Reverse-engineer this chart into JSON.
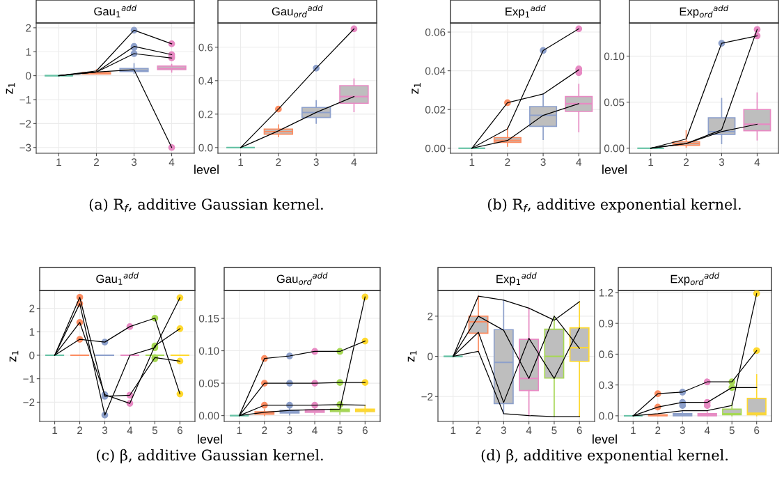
{
  "chart_data": [
    {
      "type": "box",
      "title": "Gau$_{1}$$^{add}$",
      "ylabel": "z$_{1}$",
      "xlabel": "level",
      "annotations": [
        "(a) R$_{f}$, additive Gaussian kernel."
      ],
      "categories": [
        "1",
        "2",
        "3",
        "4"
      ],
      "colors": [
        "#66c2a5",
        "#fc8d62",
        "#8da0cb",
        "#e78ac3"
      ],
      "ylim": [
        -3.24,
        2.2
      ],
      "yticks": [
        {
          "value": -3,
          "label": "−3"
        },
        {
          "value": -2,
          "label": "−2"
        },
        {
          "value": -1,
          "label": "−1"
        },
        0,
        1,
        2
      ],
      "grid": true,
      "boxes": [
        {
          "low": 0,
          "q1": 0,
          "median": 0,
          "q3": 0,
          "high": 0
        },
        {
          "low": 0.07,
          "q1": 0.07,
          "median": 0.1,
          "q3": 0.13,
          "high": 0.25
        },
        {
          "low": 0.1,
          "q1": 0.17,
          "median": 0.22,
          "q3": 0.3,
          "high": 0.5,
          "outliers": [
            1.9,
            1.22,
            1.17,
            0.92
          ]
        },
        {
          "low": 0.15,
          "q1": 0.25,
          "median": 0.3,
          "q3": 0.4,
          "high": 0.47,
          "outliers": [
            1.33,
            0.88,
            0.8,
            0.74,
            -3.0
          ]
        }
      ],
      "series": [
        {
          "type": "line",
          "color": "#000000",
          "values": [
            0,
            0.2,
            1.9,
            1.33
          ]
        },
        {
          "type": "line",
          "color": "#000000",
          "values": [
            0,
            0.15,
            0.25,
            -3.0
          ]
        },
        {
          "type": "line",
          "color": "#000000",
          "values": [
            0,
            0.15,
            1.22,
            0.88
          ]
        },
        {
          "type": "line",
          "color": "#000000",
          "values": [
            0,
            0.15,
            0.92,
            0.74
          ]
        }
      ]
    },
    {
      "type": "box",
      "title": "Gau$_{ord}$$^{add}$",
      "categories": [
        "1",
        "2",
        "3",
        "4"
      ],
      "colors": [
        "#66c2a5",
        "#fc8d62",
        "#8da0cb",
        "#e78ac3"
      ],
      "ylim": [
        -0.034,
        0.745
      ],
      "yticks": [
        {
          "value": 0,
          "label": "0.0"
        },
        0.2,
        0.4,
        0.6
      ],
      "grid": true,
      "boxes": [
        {
          "low": 0,
          "q1": 0,
          "median": 0,
          "q3": 0,
          "high": 0
        },
        {
          "low": 0.065,
          "q1": 0.08,
          "median": 0.095,
          "q3": 0.11,
          "high": 0.135,
          "outliers": [
            0.23
          ]
        },
        {
          "low": 0.145,
          "q1": 0.18,
          "median": 0.21,
          "q3": 0.24,
          "high": 0.28,
          "outliers": [
            0.475
          ]
        },
        {
          "low": 0.215,
          "q1": 0.265,
          "median": 0.305,
          "q3": 0.37,
          "high": 0.41,
          "outliers": [
            0.71
          ]
        }
      ],
      "series": [
        {
          "type": "line",
          "color": "#000000",
          "values": [
            0,
            0.23,
            0.475,
            0.71
          ]
        },
        {
          "type": "line",
          "color": "#000000",
          "values": [
            0,
            0.1,
            0.21,
            0.305
          ]
        }
      ]
    },
    {
      "type": "box",
      "title": "Exp$_{1}$$^{add}$",
      "ylabel": "z$_{1}$",
      "xlabel": "level",
      "annotations": [
        "(b) R$_{f}$, additive exponential kernel."
      ],
      "categories": [
        "1",
        "2",
        "3",
        "4"
      ],
      "colors": [
        "#66c2a5",
        "#fc8d62",
        "#8da0cb",
        "#e78ac3"
      ],
      "ylim": [
        -0.0026,
        0.0647
      ],
      "yticks": [
        {
          "value": 0,
          "label": "0.00"
        },
        {
          "value": 0.02,
          "label": "0.02"
        },
        {
          "value": 0.04,
          "label": "0.04"
        },
        {
          "value": 0.06,
          "label": "0.06"
        }
      ],
      "grid": true,
      "boxes": [
        {
          "low": 0,
          "q1": 0,
          "median": 0,
          "q3": 0,
          "high": 0
        },
        {
          "low": 0.001,
          "q1": 0.003,
          "median": 0.004,
          "q3": 0.0055,
          "high": 0.0105,
          "outliers": [
            0.0235
          ]
        },
        {
          "low": 0.0045,
          "q1": 0.0113,
          "median": 0.017,
          "q3": 0.0215,
          "high": 0.028,
          "outliers": [
            0.0505
          ]
        },
        {
          "low": 0.0085,
          "q1": 0.019,
          "median": 0.023,
          "q3": 0.0267,
          "high": 0.033,
          "outliers": [
            0.041,
            0.0405,
            0.039,
            0.0617
          ]
        }
      ],
      "series": [
        {
          "type": "line",
          "color": "#000000",
          "values": [
            0,
            0.0235,
            0.028,
            0.0405
          ]
        },
        {
          "type": "line",
          "color": "#000000",
          "values": [
            0,
            0.01,
            0.0505,
            0.0617
          ]
        },
        {
          "type": "line",
          "color": "#000000",
          "values": [
            0,
            0.004,
            0.017,
            0.023
          ]
        }
      ]
    },
    {
      "type": "box",
      "title": "Exp$_{ord}$$^{add}$",
      "categories": [
        "1",
        "2",
        "3",
        "4"
      ],
      "colors": [
        "#66c2a5",
        "#fc8d62",
        "#8da0cb",
        "#e78ac3"
      ],
      "ylim": [
        -0.0055,
        0.136
      ],
      "yticks": [
        {
          "value": 0,
          "label": "0.00"
        },
        {
          "value": 0.05,
          "label": "0.05"
        },
        {
          "value": 0.1,
          "label": "0.10"
        }
      ],
      "grid": true,
      "boxes": [
        {
          "low": 0,
          "q1": 0,
          "median": 0,
          "q3": 0,
          "high": 0
        },
        {
          "low": 0.001,
          "q1": 0.003,
          "median": 0.005,
          "q3": 0.007,
          "high": 0.019
        },
        {
          "low": 0.005,
          "q1": 0.015,
          "median": 0.018,
          "q3": 0.033,
          "high": 0.054,
          "outliers": [
            0.114
          ]
        },
        {
          "low": 0.009,
          "q1": 0.019,
          "median": 0.026,
          "q3": 0.042,
          "high": 0.06,
          "outliers": [
            0.129,
            0.122
          ]
        }
      ],
      "series": [
        {
          "type": "line",
          "color": "#000000",
          "values": [
            0,
            0.01,
            0.114,
            0.122
          ]
        },
        {
          "type": "line",
          "color": "#000000",
          "values": [
            0,
            0.005,
            0.02,
            0.129
          ]
        },
        {
          "type": "line",
          "color": "#000000",
          "values": [
            0,
            0.005,
            0.018,
            0.026
          ]
        }
      ]
    },
    {
      "type": "box",
      "title": "Gau$_{1}$$^{add}$",
      "ylabel": "z$_{1}$",
      "xlabel": "level",
      "annotations": [
        "(c) β, additive Gaussian kernel."
      ],
      "categories": [
        "1",
        "2",
        "3",
        "4",
        "5",
        "6"
      ],
      "colors": [
        "#66c2a5",
        "#fc8d62",
        "#8da0cb",
        "#e78ac3",
        "#a6d854",
        "#ffd92f"
      ],
      "ylim": [
        -2.82,
        2.76
      ],
      "yticks": [
        {
          "value": -2,
          "label": "−2"
        },
        {
          "value": -1,
          "label": "−1"
        },
        0,
        1,
        2
      ],
      "grid": true,
      "boxes": [
        {
          "low": 0,
          "q1": 0,
          "median": 0,
          "q3": 0,
          "high": 0
        },
        {
          "low": 0,
          "q1": 0,
          "median": 0,
          "q3": 0,
          "high": 0,
          "outliers": [
            2.47,
            2.2,
            1.4,
            0.68
          ]
        },
        {
          "low": 0,
          "q1": 0,
          "median": 0,
          "q3": 0,
          "high": 0,
          "outliers": [
            0.56,
            -1.68,
            -1.75,
            -2.55
          ]
        },
        {
          "low": 0,
          "q1": 0,
          "median": 0,
          "q3": 0,
          "high": 0,
          "outliers": [
            1.22,
            -1.7,
            -2.05
          ]
        },
        {
          "low": 0,
          "q1": 0,
          "median": 0,
          "q3": 0,
          "high": 0,
          "outliers": [
            1.58,
            0.4,
            0.32,
            -0.1,
            -0.15
          ]
        },
        {
          "low": 0,
          "q1": 0,
          "median": 0,
          "q3": 0,
          "high": 0,
          "outliers": [
            2.45,
            1.13,
            -0.25,
            -1.65
          ]
        }
      ],
      "series": [
        {
          "type": "line",
          "color": "#000000",
          "values": [
            0,
            0.68,
            0.56,
            1.22,
            1.58,
            -1.65
          ]
        },
        {
          "type": "line",
          "color": "#000000",
          "values": [
            0,
            2.47,
            -1.75,
            -1.7,
            -0.1,
            -0.25
          ]
        },
        {
          "type": "line",
          "color": "#000000",
          "values": [
            0,
            2.2,
            -2.55,
            0,
            0.32,
            2.45
          ]
        },
        {
          "type": "line",
          "color": "#000000",
          "values": [
            0,
            1.4,
            -1.68,
            -2.05,
            0.4,
            1.13
          ]
        }
      ]
    },
    {
      "type": "box",
      "title": "Gau$_{ord}$$^{add}$",
      "categories": [
        "1",
        "2",
        "3",
        "4",
        "5",
        "6"
      ],
      "colors": [
        "#66c2a5",
        "#fc8d62",
        "#8da0cb",
        "#e78ac3",
        "#a6d854",
        "#ffd92f"
      ],
      "ylim": [
        -0.009,
        0.193
      ],
      "yticks": [
        {
          "value": 0,
          "label": "0.00"
        },
        {
          "value": 0.05,
          "label": "0.05"
        },
        {
          "value": 0.1,
          "label": "0.10"
        },
        {
          "value": 0.15,
          "label": "0.15"
        }
      ],
      "grid": true,
      "boxes": [
        {
          "low": 0,
          "q1": 0,
          "median": 0,
          "q3": 0,
          "high": 0
        },
        {
          "low": 0,
          "q1": 0.002,
          "median": 0.004,
          "q3": 0.006,
          "high": 0.009,
          "outliers": [
            0.088,
            0.05,
            0.016
          ]
        },
        {
          "low": 0.001,
          "q1": 0.004,
          "median": 0.006,
          "q3": 0.008,
          "high": 0.012,
          "outliers": [
            0.092,
            0.05,
            0.016
          ]
        },
        {
          "low": 0.002,
          "q1": 0.005,
          "median": 0.007,
          "q3": 0.009,
          "high": 0.013,
          "outliers": [
            0.099,
            0.05,
            0.016
          ]
        },
        {
          "low": 0.002,
          "q1": 0.006,
          "median": 0.008,
          "q3": 0.01,
          "high": 0.015,
          "outliers": [
            0.099,
            0.051,
            0.017
          ]
        },
        {
          "low": 0.003,
          "q1": 0.006,
          "median": 0.008,
          "q3": 0.01,
          "high": 0.016,
          "outliers": [
            0.183,
            0.115,
            0.051
          ]
        }
      ],
      "series": [
        {
          "type": "line",
          "color": "#000000",
          "values": [
            0,
            0.088,
            0.092,
            0.099,
            0.099,
            0.115
          ]
        },
        {
          "type": "line",
          "color": "#000000",
          "values": [
            0,
            0.05,
            0.05,
            0.05,
            0.051,
            0.051
          ]
        },
        {
          "type": "line",
          "color": "#000000",
          "values": [
            0,
            0.016,
            0.016,
            0.016,
            0.017,
            0.016
          ]
        },
        {
          "type": "line",
          "color": "#000000",
          "values": [
            0,
            0.005,
            0.008,
            0.009,
            0.01,
            0.183
          ]
        }
      ]
    },
    {
      "type": "box",
      "title": "Exp$_{1}$$^{add}$",
      "ylabel": "z$_{1}$",
      "xlabel": "level",
      "annotations": [
        "(d) β, additive exponential kernel."
      ],
      "categories": [
        "1",
        "2",
        "3",
        "4",
        "5",
        "6"
      ],
      "colors": [
        "#66c2a5",
        "#fc8d62",
        "#8da0cb",
        "#e78ac3",
        "#a6d854",
        "#ffd92f"
      ],
      "ylim": [
        -3.24,
        3.28
      ],
      "yticks": [
        {
          "value": -2,
          "label": "−2"
        },
        0,
        2
      ],
      "grid": true,
      "boxes": [
        {
          "low": 0,
          "q1": 0,
          "median": 0,
          "q3": 0,
          "high": 0
        },
        {
          "low": 0.25,
          "q1": 1.15,
          "median": 1.72,
          "q3": 2.0,
          "high": 3.0
        },
        {
          "low": -2.85,
          "q1": -2.35,
          "median": -0.3,
          "q3": 1.33,
          "high": 2.8
        },
        {
          "low": -2.95,
          "q1": -1.7,
          "median": -1.1,
          "q3": 0.85,
          "high": 2.4
        },
        {
          "low": -3.0,
          "q1": -1.08,
          "median": 0.0,
          "q3": 1.35,
          "high": 2.0
        },
        {
          "low": -3.0,
          "q1": -0.25,
          "median": 0.43,
          "q3": 1.42,
          "high": 2.72
        }
      ],
      "series": [
        {
          "type": "line",
          "color": "#000000",
          "values": [
            0,
            3.0,
            2.8,
            2.4,
            1.8,
            2.72
          ]
        },
        {
          "type": "line",
          "color": "#000000",
          "values": [
            0,
            0.25,
            -2.85,
            -2.95,
            -3.0,
            -3.0
          ]
        },
        {
          "type": "line",
          "color": "#000000",
          "values": [
            0,
            2.0,
            1.3,
            -1.1,
            2.0,
            0.4
          ]
        },
        {
          "type": "line",
          "color": "#000000",
          "values": [
            0,
            1.2,
            -2.3,
            0.9,
            -1.1,
            1.4
          ]
        }
      ]
    },
    {
      "type": "box",
      "title": "Exp$_{ord}$$^{add}$",
      "categories": [
        "1",
        "2",
        "3",
        "4",
        "5",
        "6"
      ],
      "colors": [
        "#66c2a5",
        "#fc8d62",
        "#8da0cb",
        "#e78ac3",
        "#a6d854",
        "#ffd92f"
      ],
      "ylim": [
        -0.055,
        1.22
      ],
      "yticks": [
        {
          "value": 0,
          "label": "0.0"
        },
        0.3,
        0.6,
        0.9,
        1.2
      ],
      "grid": true,
      "boxes": [
        {
          "low": 0,
          "q1": 0,
          "median": 0,
          "q3": 0,
          "high": 0
        },
        {
          "low": 0,
          "q1": 0,
          "median": 0.005,
          "q3": 0.01,
          "high": 0.01,
          "outliers": [
            0.215,
            0.085
          ]
        },
        {
          "low": 0,
          "q1": 0,
          "median": 0.01,
          "q3": 0.02,
          "high": 0.04,
          "outliers": [
            0.23,
            0.13,
            0.1
          ]
        },
        {
          "low": 0,
          "q1": 0,
          "median": 0.01,
          "q3": 0.02,
          "high": 0.04,
          "outliers": [
            0.33,
            0.13,
            0.1
          ]
        },
        {
          "low": 0,
          "q1": 0.01,
          "median": 0.02,
          "q3": 0.065,
          "high": 0.12,
          "outliers": [
            0.33,
            0.275
          ]
        },
        {
          "low": 0,
          "q1": 0.01,
          "median": 0.025,
          "q3": 0.17,
          "high": 0.4,
          "outliers": [
            1.19,
            0.635
          ]
        }
      ],
      "series": [
        {
          "type": "line",
          "color": "#000000",
          "values": [
            0,
            0.215,
            0.23,
            0.33,
            0.33,
            0.635
          ]
        },
        {
          "type": "line",
          "color": "#000000",
          "values": [
            0,
            0.085,
            0.13,
            0.13,
            0.275,
            0.275
          ]
        },
        {
          "type": "line",
          "color": "#000000",
          "values": [
            0,
            0.02,
            0.05,
            0.05,
            0.1,
            1.19
          ]
        }
      ]
    }
  ]
}
